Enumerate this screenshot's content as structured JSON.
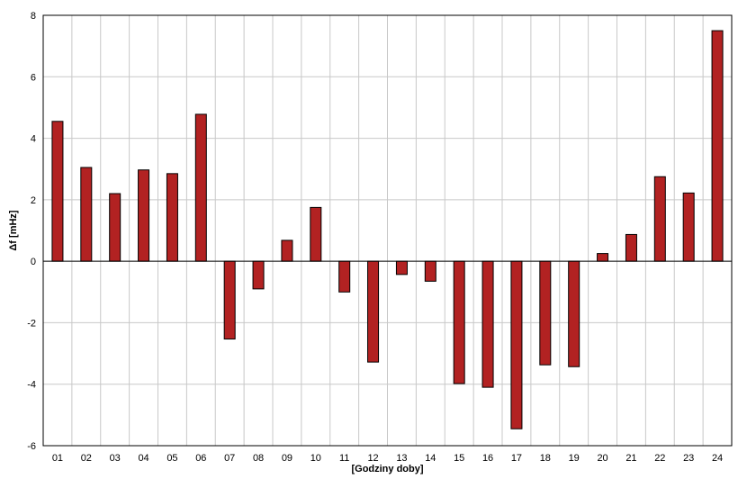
{
  "chart_data": {
    "type": "bar",
    "xlabel": "[Godziny doby]",
    "ylabel": "Δf [mHz]",
    "ylim": [
      -6,
      8
    ],
    "yticks": [
      -6,
      -4,
      -2,
      0,
      2,
      4,
      6,
      8
    ],
    "grid": true,
    "legend": "none",
    "categories": [
      "01",
      "02",
      "03",
      "04",
      "05",
      "06",
      "07",
      "08",
      "09",
      "10",
      "11",
      "12",
      "13",
      "14",
      "15",
      "16",
      "17",
      "18",
      "19",
      "20",
      "21",
      "22",
      "23",
      "24"
    ],
    "series": [
      {
        "values": [
          4.55,
          3.05,
          2.2,
          2.97,
          2.85,
          4.78,
          -2.53,
          -0.9,
          0.68,
          1.75,
          -1.0,
          -3.28,
          -0.43,
          -0.65,
          -3.98,
          -4.1,
          -5.45,
          -3.37,
          -3.43,
          0.25,
          0.87,
          2.75,
          2.22,
          7.5
        ]
      }
    ],
    "colors": {
      "bar": "#b22222",
      "bar_stroke": "#000000",
      "grid": "#c8c8c8",
      "frame": "#000000"
    }
  }
}
